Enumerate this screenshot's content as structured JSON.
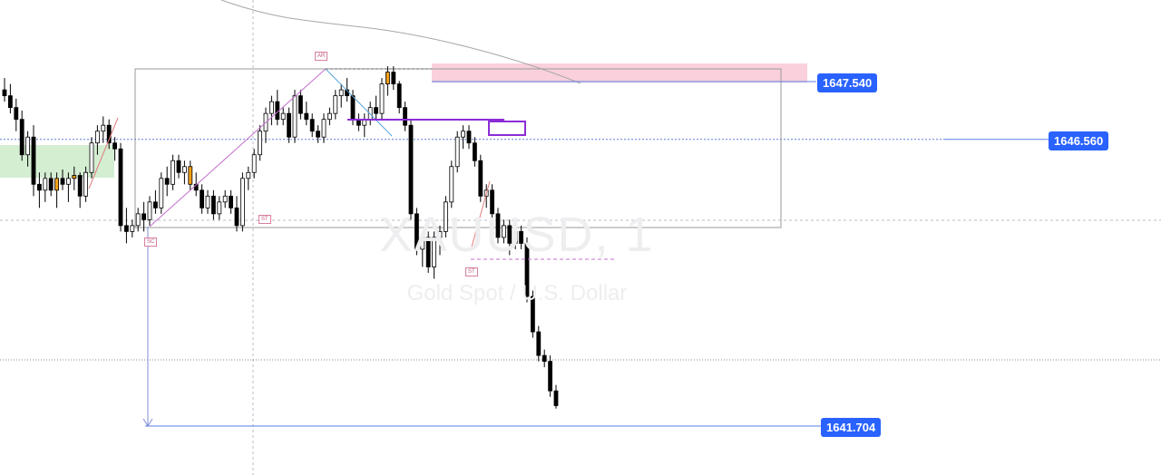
{
  "chart": {
    "symbol": "XAUUSD",
    "interval": "1",
    "description": "Gold Spot / U.S. Dollar"
  },
  "price_labels": [
    {
      "value": "1647.540",
      "color": "#2962ff"
    },
    {
      "value": "1646.560",
      "color": "#2962ff"
    },
    {
      "value": "1641.704",
      "color": "#2962ff"
    }
  ],
  "annotations": [
    "AR",
    "SC",
    "ST",
    "ST"
  ],
  "colors": {
    "bull": "#ffffff",
    "bear": "#000000",
    "highlight": "#f59f1a",
    "supply_zone": "#f8c8d6",
    "demand_zone": "#cfeccd",
    "trend_line": "#c46fcf",
    "box": "#9a9a9a",
    "level_line": "#5b7fe0",
    "purple_box": "#8c2cd6"
  },
  "chart_data": {
    "type": "candlestick",
    "title": "XAUUSD, 1",
    "subtitle": "Gold Spot / U.S. Dollar",
    "xlabel": "",
    "ylabel": "",
    "ylim": [
      1641.0,
      1648.5
    ],
    "grid": false,
    "levels": [
      1647.54,
      1646.56,
      1641.704
    ],
    "candles": [
      {
        "o": 1647.4,
        "h": 1647.6,
        "l": 1647.2,
        "c": 1647.3
      },
      {
        "o": 1647.3,
        "h": 1647.5,
        "l": 1647.0,
        "c": 1647.1
      },
      {
        "o": 1647.1,
        "h": 1647.25,
        "l": 1646.7,
        "c": 1646.9
      },
      {
        "o": 1646.9,
        "h": 1647.05,
        "l": 1646.2,
        "c": 1646.3
      },
      {
        "o": 1646.3,
        "h": 1646.7,
        "l": 1646.1,
        "c": 1646.6
      },
      {
        "o": 1646.6,
        "h": 1646.8,
        "l": 1645.6,
        "c": 1645.8
      },
      {
        "o": 1645.8,
        "h": 1646.0,
        "l": 1645.4,
        "c": 1645.7
      },
      {
        "o": 1645.7,
        "h": 1646.0,
        "l": 1645.5,
        "c": 1645.9
      },
      {
        "o": 1645.9,
        "h": 1646.0,
        "l": 1645.6,
        "c": 1645.7
      },
      {
        "o": 1645.7,
        "h": 1646.0,
        "l": 1645.4,
        "c": 1645.9,
        "hl": true
      },
      {
        "o": 1645.9,
        "h": 1646.05,
        "l": 1645.7,
        "c": 1645.8
      },
      {
        "o": 1645.8,
        "h": 1646.0,
        "l": 1645.5,
        "c": 1645.9
      },
      {
        "o": 1645.9,
        "h": 1646.1,
        "l": 1645.7,
        "c": 1645.95,
        "hl": true
      },
      {
        "o": 1645.95,
        "h": 1646.0,
        "l": 1645.4,
        "c": 1645.6
      },
      {
        "o": 1645.6,
        "h": 1646.1,
        "l": 1645.5,
        "c": 1646.0
      },
      {
        "o": 1646.0,
        "h": 1646.6,
        "l": 1645.9,
        "c": 1646.5
      },
      {
        "o": 1646.5,
        "h": 1646.8,
        "l": 1646.3,
        "c": 1646.7
      },
      {
        "o": 1646.7,
        "h": 1646.95,
        "l": 1646.5,
        "c": 1646.8
      },
      {
        "o": 1646.8,
        "h": 1646.9,
        "l": 1646.4,
        "c": 1646.5
      },
      {
        "o": 1646.5,
        "h": 1646.6,
        "l": 1646.2,
        "c": 1646.4
      },
      {
        "o": 1646.4,
        "h": 1646.5,
        "l": 1645.0,
        "c": 1645.1
      },
      {
        "o": 1645.1,
        "h": 1645.4,
        "l": 1644.8,
        "c": 1645.0
      },
      {
        "o": 1645.0,
        "h": 1645.2,
        "l": 1644.9,
        "c": 1645.1
      },
      {
        "o": 1645.1,
        "h": 1645.4,
        "l": 1645.0,
        "c": 1645.3
      },
      {
        "o": 1645.3,
        "h": 1645.5,
        "l": 1645.0,
        "c": 1645.2
      },
      {
        "o": 1645.2,
        "h": 1645.6,
        "l": 1645.1,
        "c": 1645.5
      },
      {
        "o": 1645.5,
        "h": 1645.7,
        "l": 1645.3,
        "c": 1645.4
      },
      {
        "o": 1645.4,
        "h": 1646.0,
        "l": 1645.3,
        "c": 1645.9
      },
      {
        "o": 1645.9,
        "h": 1646.1,
        "l": 1645.6,
        "c": 1645.8
      },
      {
        "o": 1645.8,
        "h": 1646.3,
        "l": 1645.7,
        "c": 1646.2
      },
      {
        "o": 1646.2,
        "h": 1646.3,
        "l": 1645.9,
        "c": 1646.0
      },
      {
        "o": 1646.0,
        "h": 1646.2,
        "l": 1645.8,
        "c": 1646.1
      },
      {
        "o": 1646.1,
        "h": 1646.2,
        "l": 1645.7,
        "c": 1645.8,
        "hl": true
      },
      {
        "o": 1645.8,
        "h": 1646.0,
        "l": 1645.6,
        "c": 1645.7
      },
      {
        "o": 1645.7,
        "h": 1645.8,
        "l": 1645.3,
        "c": 1645.4
      },
      {
        "o": 1645.4,
        "h": 1645.7,
        "l": 1645.3,
        "c": 1645.6
      },
      {
        "o": 1645.6,
        "h": 1645.7,
        "l": 1645.2,
        "c": 1645.3
      },
      {
        "o": 1645.3,
        "h": 1645.6,
        "l": 1645.2,
        "c": 1645.5
      },
      {
        "o": 1645.5,
        "h": 1645.7,
        "l": 1645.4,
        "c": 1645.6
      },
      {
        "o": 1645.6,
        "h": 1645.7,
        "l": 1645.3,
        "c": 1645.4
      },
      {
        "o": 1645.4,
        "h": 1645.6,
        "l": 1645.0,
        "c": 1645.1
      },
      {
        "o": 1645.1,
        "h": 1646.0,
        "l": 1645.0,
        "c": 1645.9
      },
      {
        "o": 1645.9,
        "h": 1646.1,
        "l": 1645.7,
        "c": 1646.0
      },
      {
        "o": 1646.0,
        "h": 1646.4,
        "l": 1645.9,
        "c": 1646.3
      },
      {
        "o": 1646.3,
        "h": 1646.8,
        "l": 1646.2,
        "c": 1646.7
      },
      {
        "o": 1646.7,
        "h": 1647.1,
        "l": 1646.5,
        "c": 1647.0
      },
      {
        "o": 1647.0,
        "h": 1647.3,
        "l": 1646.8,
        "c": 1647.2
      },
      {
        "o": 1647.2,
        "h": 1647.4,
        "l": 1646.8,
        "c": 1646.9
      },
      {
        "o": 1646.9,
        "h": 1647.1,
        "l": 1646.8,
        "c": 1647.0
      },
      {
        "o": 1647.0,
        "h": 1647.1,
        "l": 1646.5,
        "c": 1646.6
      },
      {
        "o": 1646.6,
        "h": 1647.4,
        "l": 1646.5,
        "c": 1647.3
      },
      {
        "o": 1647.3,
        "h": 1647.4,
        "l": 1646.9,
        "c": 1647.0
      },
      {
        "o": 1647.0,
        "h": 1647.2,
        "l": 1646.8,
        "c": 1646.9
      },
      {
        "o": 1646.9,
        "h": 1647.0,
        "l": 1646.6,
        "c": 1646.7
      },
      {
        "o": 1646.7,
        "h": 1646.8,
        "l": 1646.5,
        "c": 1646.6
      },
      {
        "o": 1646.6,
        "h": 1647.0,
        "l": 1646.5,
        "c": 1646.9
      },
      {
        "o": 1646.9,
        "h": 1647.1,
        "l": 1646.8,
        "c": 1647.0
      },
      {
        "o": 1647.0,
        "h": 1647.4,
        "l": 1646.9,
        "c": 1647.3
      },
      {
        "o": 1647.3,
        "h": 1647.5,
        "l": 1647.1,
        "c": 1647.4
      },
      {
        "o": 1647.4,
        "h": 1647.6,
        "l": 1647.2,
        "c": 1647.3
      },
      {
        "o": 1647.3,
        "h": 1647.4,
        "l": 1646.8,
        "c": 1646.9
      },
      {
        "o": 1646.9,
        "h": 1647.0,
        "l": 1646.7,
        "c": 1646.8
      },
      {
        "o": 1646.8,
        "h": 1647.0,
        "l": 1646.6,
        "c": 1646.9
      },
      {
        "o": 1646.9,
        "h": 1647.2,
        "l": 1646.8,
        "c": 1647.1
      },
      {
        "o": 1647.1,
        "h": 1647.3,
        "l": 1646.9,
        "c": 1647.0
      },
      {
        "o": 1647.0,
        "h": 1647.6,
        "l": 1646.9,
        "c": 1647.5
      },
      {
        "o": 1647.5,
        "h": 1647.8,
        "l": 1647.3,
        "c": 1647.7,
        "hl": true
      },
      {
        "o": 1647.7,
        "h": 1647.8,
        "l": 1647.4,
        "c": 1647.5
      },
      {
        "o": 1647.5,
        "h": 1647.55,
        "l": 1647.0,
        "c": 1647.1
      },
      {
        "o": 1647.1,
        "h": 1647.2,
        "l": 1646.7,
        "c": 1646.8
      },
      {
        "o": 1646.8,
        "h": 1646.9,
        "l": 1645.2,
        "c": 1645.3
      },
      {
        "o": 1645.3,
        "h": 1645.4,
        "l": 1644.6,
        "c": 1644.7
      },
      {
        "o": 1644.7,
        "h": 1645.0,
        "l": 1644.4,
        "c": 1644.9
      },
      {
        "o": 1644.9,
        "h": 1645.0,
        "l": 1644.3,
        "c": 1644.4
      },
      {
        "o": 1644.4,
        "h": 1645.0,
        "l": 1644.2,
        "c": 1644.9
      },
      {
        "o": 1644.9,
        "h": 1645.1,
        "l": 1644.6,
        "c": 1645.0
      },
      {
        "o": 1645.0,
        "h": 1645.6,
        "l": 1644.9,
        "c": 1645.5
      },
      {
        "o": 1645.5,
        "h": 1646.2,
        "l": 1645.4,
        "c": 1646.1
      },
      {
        "o": 1646.1,
        "h": 1646.7,
        "l": 1646.0,
        "c": 1646.6
      },
      {
        "o": 1646.6,
        "h": 1646.8,
        "l": 1646.4,
        "c": 1646.7
      },
      {
        "o": 1646.7,
        "h": 1646.8,
        "l": 1646.4,
        "c": 1646.5
      },
      {
        "o": 1646.5,
        "h": 1646.6,
        "l": 1646.1,
        "c": 1646.2
      },
      {
        "o": 1646.2,
        "h": 1646.3,
        "l": 1645.5,
        "c": 1645.6
      },
      {
        "o": 1645.6,
        "h": 1645.8,
        "l": 1645.4,
        "c": 1645.7
      },
      {
        "o": 1645.7,
        "h": 1645.8,
        "l": 1645.2,
        "c": 1645.3
      },
      {
        "o": 1645.3,
        "h": 1645.4,
        "l": 1644.8,
        "c": 1644.9
      },
      {
        "o": 1644.9,
        "h": 1645.2,
        "l": 1644.8,
        "c": 1645.1
      },
      {
        "o": 1645.1,
        "h": 1645.2,
        "l": 1644.6,
        "c": 1644.8
      },
      {
        "o": 1644.8,
        "h": 1645.1,
        "l": 1644.7,
        "c": 1645.0,
        "hl": true
      },
      {
        "o": 1645.0,
        "h": 1645.1,
        "l": 1644.7,
        "c": 1644.8
      },
      {
        "o": 1644.8,
        "h": 1644.9,
        "l": 1643.8,
        "c": 1643.9
      },
      {
        "o": 1643.9,
        "h": 1644.0,
        "l": 1643.2,
        "c": 1643.3
      },
      {
        "o": 1643.3,
        "h": 1643.4,
        "l": 1642.8,
        "c": 1642.9
      },
      {
        "o": 1642.9,
        "h": 1643.0,
        "l": 1642.7,
        "c": 1642.8
      },
      {
        "o": 1642.8,
        "h": 1642.9,
        "l": 1642.2,
        "c": 1642.3
      },
      {
        "o": 1642.3,
        "h": 1642.4,
        "l": 1642.0,
        "c": 1642.05
      }
    ]
  }
}
